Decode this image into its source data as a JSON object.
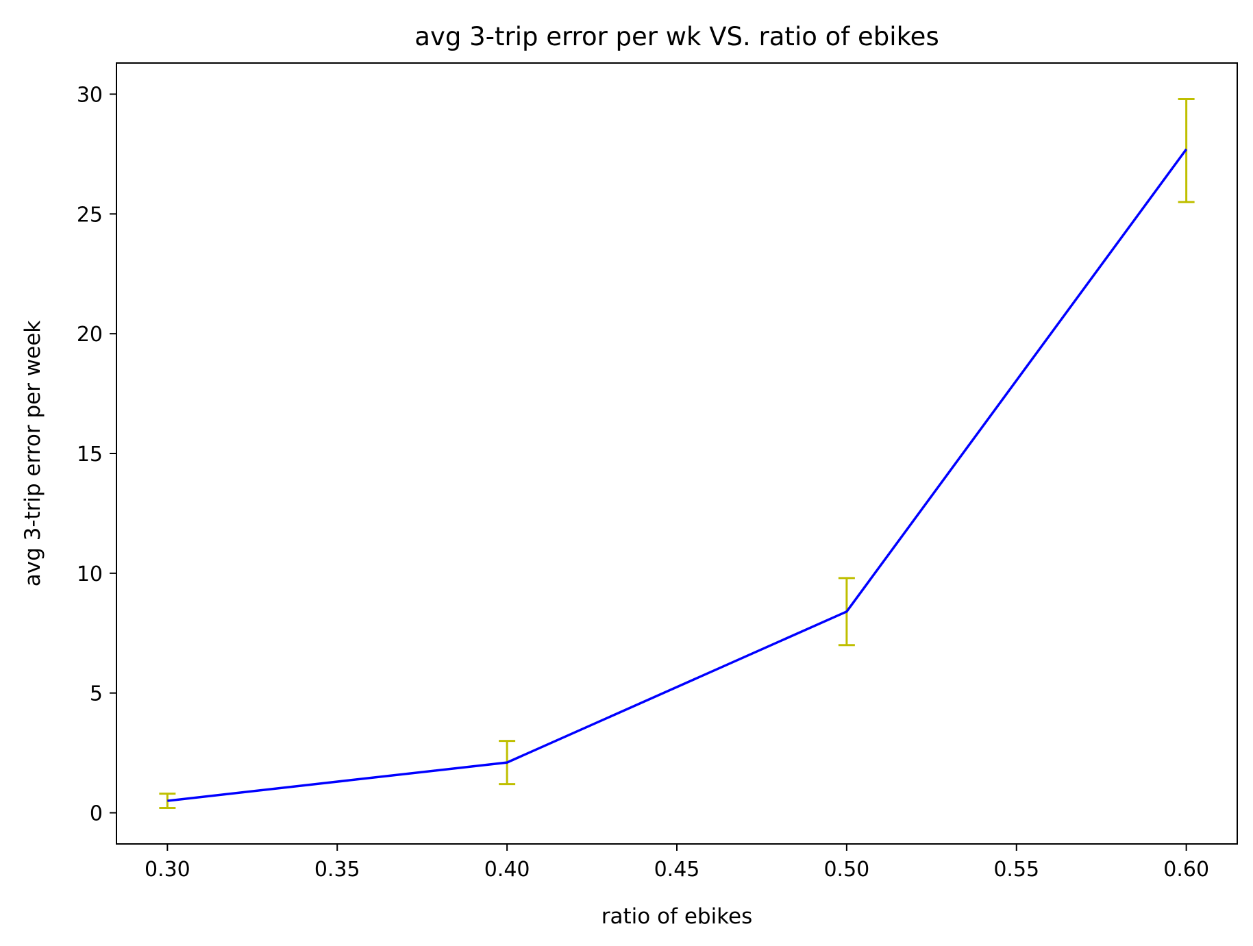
{
  "chart_data": {
    "type": "line",
    "title": "avg 3-trip error per wk VS. ratio of ebikes",
    "xlabel": "ratio of ebikes",
    "ylabel": "avg 3-trip error per week",
    "x": [
      0.3,
      0.4,
      0.5,
      0.6
    ],
    "series": [
      {
        "values": [
          0.5,
          2.1,
          8.4,
          27.7
        ],
        "error_low": [
          0.2,
          1.2,
          7.0,
          25.5
        ],
        "error_high": [
          0.8,
          3.0,
          9.8,
          29.8
        ],
        "line_color": "#0000ff",
        "error_color": "#bfbf00"
      }
    ],
    "xlim": [
      0.285,
      0.615
    ],
    "ylim": [
      -1.3,
      31.3
    ],
    "xticks": [
      0.3,
      0.35,
      0.4,
      0.45,
      0.5,
      0.55,
      0.6
    ],
    "xtick_labels": [
      "0.30",
      "0.35",
      "0.40",
      "0.45",
      "0.50",
      "0.55",
      "0.60"
    ],
    "yticks": [
      0,
      5,
      10,
      15,
      20,
      25,
      30
    ],
    "ytick_labels": [
      "0",
      "5",
      "10",
      "15",
      "20",
      "25",
      "30"
    ],
    "grid": false,
    "legend": "none"
  }
}
